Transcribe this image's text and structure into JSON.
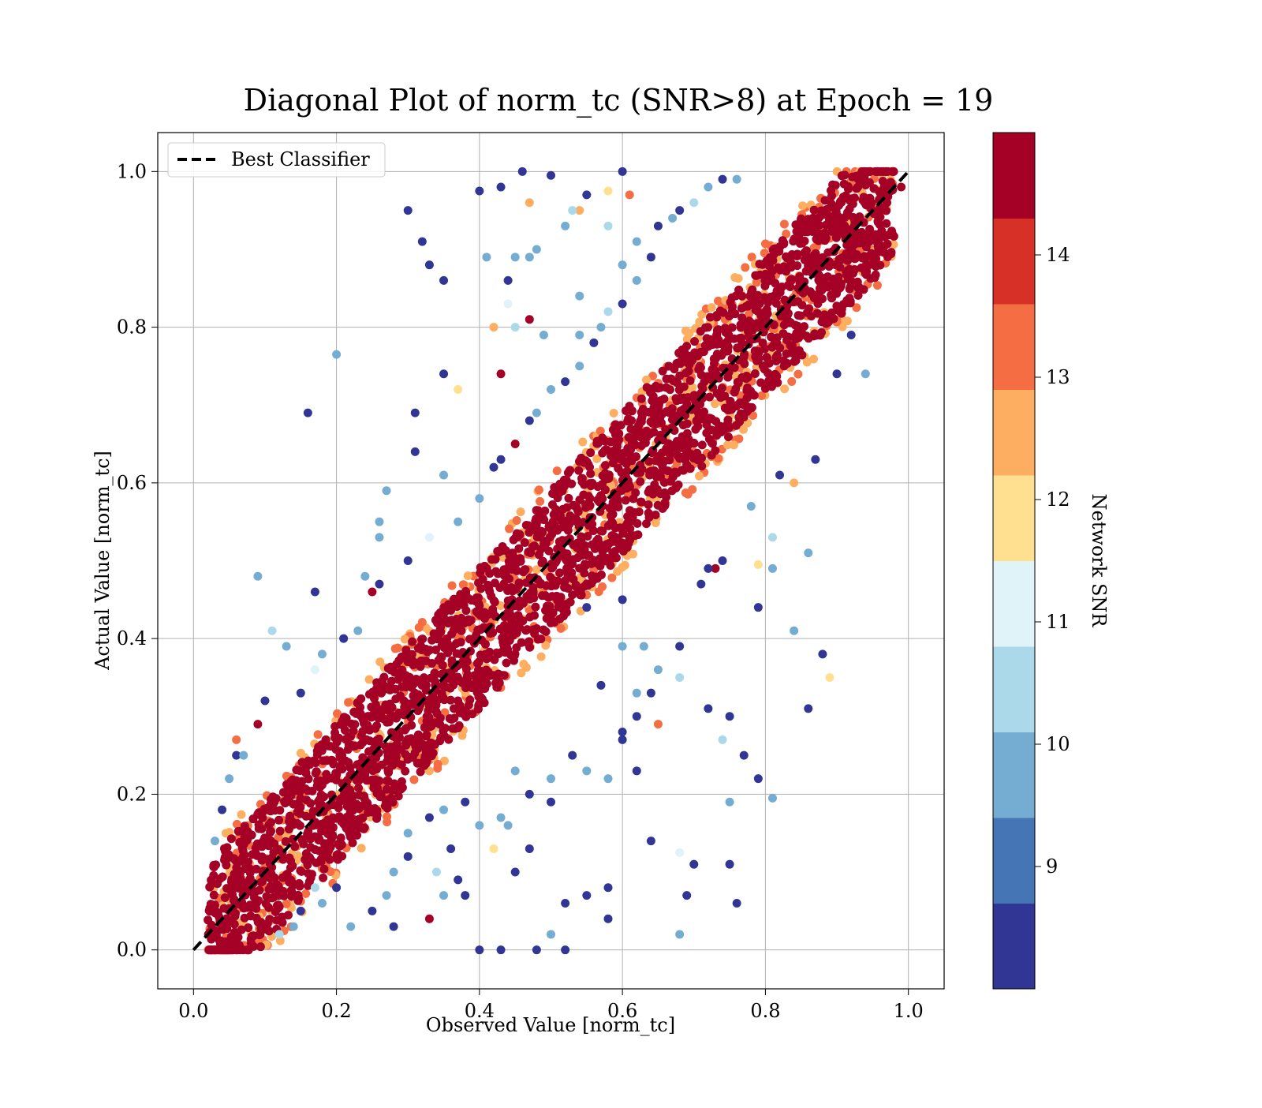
{
  "chart_data": {
    "type": "scatter",
    "title": "Diagonal Plot of norm_tc (SNR>8) at Epoch = 19",
    "xlabel": "Observed Value [norm_tc]",
    "ylabel": "Actual Value [norm_tc]",
    "xlim": [
      -0.05,
      1.05
    ],
    "ylim": [
      -0.05,
      1.05
    ],
    "xticks": [
      "0.0",
      "0.2",
      "0.4",
      "0.6",
      "0.8",
      "1.0"
    ],
    "yticks": [
      "0.0",
      "0.2",
      "0.4",
      "0.6",
      "0.8",
      "1.0"
    ],
    "xtick_values": [
      0,
      0.2,
      0.4,
      0.6,
      0.8,
      1.0
    ],
    "ytick_values": [
      0,
      0.2,
      0.4,
      0.6,
      0.8,
      1.0
    ],
    "grid": true,
    "legend": {
      "placement": "upper-left",
      "entries": [
        "Best Classifier"
      ]
    },
    "reference_line": {
      "name": "Best Classifier",
      "x": [
        0,
        1
      ],
      "y": [
        0,
        1
      ],
      "style": "dashed",
      "color": "#000000"
    },
    "colorbar": {
      "label": "Network SNR",
      "range": [
        8,
        15
      ],
      "ticks": [
        "9",
        "10",
        "11",
        "12",
        "13",
        "14"
      ],
      "tick_values": [
        9,
        10,
        11,
        12,
        13,
        14
      ],
      "colors": [
        "#313695",
        "#4575b4",
        "#74add1",
        "#abd9e9",
        "#e0f3f8",
        "#fee090",
        "#fdae61",
        "#f46d43",
        "#d73027",
        "#a50026"
      ]
    },
    "series": [
      {
        "description_color_by": "Network SNR",
        "points": [
          [
            0.16,
            0.69,
            8.5
          ],
          [
            0.2,
            0.765,
            9.5
          ],
          [
            0.35,
            0.74,
            8.5
          ],
          [
            0.3,
            0.95,
            8.5
          ],
          [
            0.32,
            0.91,
            8.5
          ],
          [
            0.33,
            0.88,
            8.5
          ],
          [
            0.35,
            0.86,
            8.5
          ],
          [
            0.43,
            0.98,
            8.5
          ],
          [
            0.4,
            0.975,
            8.5
          ],
          [
            0.46,
            1.0,
            8.5
          ],
          [
            0.5,
            0.995,
            8.5
          ],
          [
            0.55,
            0.97,
            8.5
          ],
          [
            0.6,
            1.0,
            8.5
          ],
          [
            0.47,
            0.96,
            12.5
          ],
          [
            0.52,
            0.93,
            9.5
          ],
          [
            0.42,
            0.8,
            12.5
          ],
          [
            0.43,
            0.74,
            14.5
          ],
          [
            0.37,
            0.72,
            12
          ],
          [
            0.31,
            0.69,
            8.5
          ],
          [
            0.31,
            0.64,
            8.5
          ],
          [
            0.35,
            0.61,
            10
          ],
          [
            0.27,
            0.59,
            9.5
          ],
          [
            0.09,
            0.48,
            9.5
          ],
          [
            0.17,
            0.46,
            8.5
          ],
          [
            0.13,
            0.39,
            9.5
          ],
          [
            0.11,
            0.41,
            10.5
          ],
          [
            0.1,
            0.32,
            8.5
          ],
          [
            0.09,
            0.29,
            14.5
          ],
          [
            0.88,
            0.38,
            8.5
          ],
          [
            0.89,
            0.35,
            11.5
          ],
          [
            0.86,
            0.31,
            8.5
          ],
          [
            0.84,
            0.41,
            9.5
          ],
          [
            0.86,
            0.51,
            9.5
          ],
          [
            0.79,
            0.22,
            8.5
          ],
          [
            0.81,
            0.195,
            9.5
          ],
          [
            0.75,
            0.19,
            9.5
          ],
          [
            0.76,
            0.06,
            8.5
          ],
          [
            0.75,
            0.11,
            8.5
          ],
          [
            0.7,
            0.11,
            8.5
          ],
          [
            0.69,
            0.07,
            8.5
          ],
          [
            0.68,
            0.02,
            9.5
          ],
          [
            0.64,
            0.14,
            8.5
          ],
          [
            0.68,
            0.125,
            11
          ],
          [
            0.65,
            0.29,
            13.5
          ],
          [
            0.72,
            0.31,
            8.5
          ],
          [
            0.75,
            0.3,
            8.5
          ],
          [
            0.77,
            0.25,
            8.5
          ],
          [
            0.74,
            0.27,
            10.5
          ],
          [
            0.62,
            0.3,
            8.5
          ],
          [
            0.6,
            0.27,
            8.5
          ],
          [
            0.58,
            0.22,
            9.5
          ],
          [
            0.62,
            0.23,
            8.5
          ],
          [
            0.58,
            0.08,
            8.5
          ],
          [
            0.58,
            0.04,
            8.5
          ],
          [
            0.55,
            0.07,
            8.5
          ],
          [
            0.52,
            0.0,
            8.5
          ],
          [
            0.48,
            0.0,
            8.5
          ],
          [
            0.43,
            0.0,
            8.5
          ],
          [
            0.4,
            0.0,
            8.5
          ],
          [
            0.38,
            0.07,
            8.5
          ],
          [
            0.37,
            0.09,
            8.5
          ],
          [
            0.45,
            0.1,
            8.5
          ],
          [
            0.5,
            0.02,
            9.5
          ],
          [
            0.52,
            0.06,
            8.5
          ],
          [
            0.92,
            0.79,
            8.5
          ],
          [
            0.94,
            0.74,
            9.5
          ],
          [
            0.9,
            0.74,
            8.5
          ],
          [
            0.84,
            0.6,
            12.5
          ],
          [
            0.87,
            0.63,
            8.5
          ],
          [
            0.82,
            0.61,
            8.5
          ],
          [
            0.81,
            0.53,
            10.5
          ],
          [
            0.81,
            0.49,
            9.5
          ],
          [
            0.79,
            0.44,
            8.5
          ],
          [
            0.79,
            0.495,
            11.5
          ],
          [
            0.78,
            0.57,
            9.5
          ],
          [
            0.74,
            0.5,
            8.5
          ],
          [
            0.73,
            0.49,
            14.5
          ],
          [
            0.72,
            0.49,
            8.5
          ],
          [
            0.71,
            0.47,
            8.5
          ],
          [
            0.68,
            0.39,
            8.5
          ],
          [
            0.68,
            0.35,
            10.5
          ],
          [
            0.65,
            0.36,
            9.5
          ],
          [
            0.63,
            0.39,
            9.5
          ],
          [
            0.6,
            0.39,
            9.5
          ],
          [
            0.6,
            0.45,
            8.5
          ],
          [
            0.55,
            0.44,
            8.5
          ],
          [
            0.64,
            0.33,
            8.5
          ],
          [
            0.62,
            0.33,
            10
          ],
          [
            0.57,
            0.34,
            8.5
          ],
          [
            0.6,
            0.28,
            8.5
          ],
          [
            0.53,
            0.25,
            8.5
          ],
          [
            0.55,
            0.23,
            9.5
          ],
          [
            0.5,
            0.22,
            9.5
          ],
          [
            0.5,
            0.19,
            8.5
          ],
          [
            0.47,
            0.2,
            8.5
          ],
          [
            0.45,
            0.23,
            9.5
          ],
          [
            0.43,
            0.17,
            9.5
          ],
          [
            0.47,
            0.13,
            8.5
          ],
          [
            0.44,
            0.16,
            9.5
          ],
          [
            0.4,
            0.16,
            9.5
          ],
          [
            0.38,
            0.19,
            8.5
          ],
          [
            0.35,
            0.18,
            9.5
          ],
          [
            0.33,
            0.17,
            8.5
          ],
          [
            0.3,
            0.15,
            9.5
          ],
          [
            0.3,
            0.12,
            8.5
          ],
          [
            0.28,
            0.1,
            9.5
          ],
          [
            0.27,
            0.07,
            9.5
          ],
          [
            0.25,
            0.05,
            8.5
          ],
          [
            0.22,
            0.03,
            9.5
          ],
          [
            0.28,
            0.03,
            8.5
          ],
          [
            0.33,
            0.04,
            14.5
          ],
          [
            0.35,
            0.07,
            9.5
          ],
          [
            0.42,
            0.13,
            11.5
          ],
          [
            0.36,
            0.13,
            8.5
          ],
          [
            0.34,
            0.1,
            10.5
          ],
          [
            0.2,
            0.08,
            8.5
          ],
          [
            0.18,
            0.06,
            9.5
          ],
          [
            0.17,
            0.08,
            10.5
          ],
          [
            0.15,
            0.05,
            8.5
          ],
          [
            0.14,
            0.03,
            9.5
          ],
          [
            0.12,
            0.02,
            10.5
          ],
          [
            0.06,
            0.25,
            8.5
          ],
          [
            0.05,
            0.22,
            9.5
          ],
          [
            0.04,
            0.18,
            8.5
          ],
          [
            0.03,
            0.14,
            9.5
          ],
          [
            0.06,
            0.27,
            13.5
          ],
          [
            0.07,
            0.25,
            9.5
          ],
          [
            0.15,
            0.33,
            8.5
          ],
          [
            0.17,
            0.36,
            11
          ],
          [
            0.18,
            0.38,
            9.5
          ],
          [
            0.21,
            0.4,
            8.5
          ],
          [
            0.23,
            0.41,
            9.5
          ],
          [
            0.26,
            0.47,
            8.5
          ],
          [
            0.25,
            0.46,
            14.5
          ],
          [
            0.24,
            0.48,
            9.5
          ],
          [
            0.26,
            0.53,
            9.5
          ],
          [
            0.26,
            0.55,
            9.5
          ],
          [
            0.3,
            0.5,
            8.5
          ],
          [
            0.33,
            0.53,
            11
          ],
          [
            0.37,
            0.55,
            10
          ],
          [
            0.4,
            0.58,
            9.5
          ],
          [
            0.42,
            0.62,
            8.5
          ],
          [
            0.43,
            0.63,
            8.5
          ],
          [
            0.45,
            0.65,
            14.5
          ],
          [
            0.47,
            0.68,
            8.5
          ],
          [
            0.48,
            0.69,
            9.5
          ],
          [
            0.5,
            0.72,
            9.5
          ],
          [
            0.52,
            0.73,
            8.5
          ],
          [
            0.54,
            0.75,
            9.5
          ],
          [
            0.56,
            0.78,
            8.5
          ],
          [
            0.57,
            0.8,
            9.5
          ],
          [
            0.58,
            0.82,
            10.5
          ],
          [
            0.6,
            0.83,
            8.5
          ],
          [
            0.6,
            0.88,
            9.5
          ],
          [
            0.62,
            0.86,
            9.5
          ],
          [
            0.64,
            0.89,
            8.5
          ],
          [
            0.65,
            0.93,
            8.5
          ],
          [
            0.67,
            0.94,
            9.5
          ],
          [
            0.68,
            0.95,
            8.5
          ],
          [
            0.7,
            0.96,
            10.5
          ],
          [
            0.72,
            0.98,
            9.5
          ],
          [
            0.74,
            0.99,
            8.5
          ],
          [
            0.76,
            0.99,
            9.5
          ],
          [
            0.58,
            0.975,
            12
          ],
          [
            0.54,
            0.95,
            12.5
          ],
          [
            0.61,
            0.97,
            13.5
          ],
          [
            0.45,
            0.89,
            9.5
          ],
          [
            0.47,
            0.89,
            9.5
          ],
          [
            0.48,
            0.9,
            10
          ],
          [
            0.44,
            0.86,
            8.5
          ],
          [
            0.41,
            0.89,
            9.5
          ],
          [
            0.44,
            0.83,
            11
          ],
          [
            0.45,
            0.8,
            10.5
          ],
          [
            0.47,
            0.81,
            14.5
          ],
          [
            0.49,
            0.79,
            9.5
          ],
          [
            0.54,
            0.79,
            9.5
          ],
          [
            0.54,
            0.84,
            10
          ],
          [
            0.53,
            0.95,
            10.5
          ],
          [
            0.58,
            0.93,
            10.5
          ],
          [
            0.62,
            0.91,
            9.5
          ],
          [
            0.99,
            0.98,
            14.5
          ],
          [
            0.97,
            0.96,
            14.5
          ],
          [
            0.96,
            0.92,
            14.5
          ],
          [
            0.95,
            0.89,
            14.5
          ],
          [
            0.93,
            0.85,
            14.5
          ]
        ],
        "core_band": {
          "snr": 14.5,
          "x_from": 0.02,
          "x_to": 0.98,
          "y_offset_half_width": 0.09
        },
        "edge_band": {
          "snr": 13.5,
          "y_offset_half_width": 0.11
        }
      }
    ]
  }
}
